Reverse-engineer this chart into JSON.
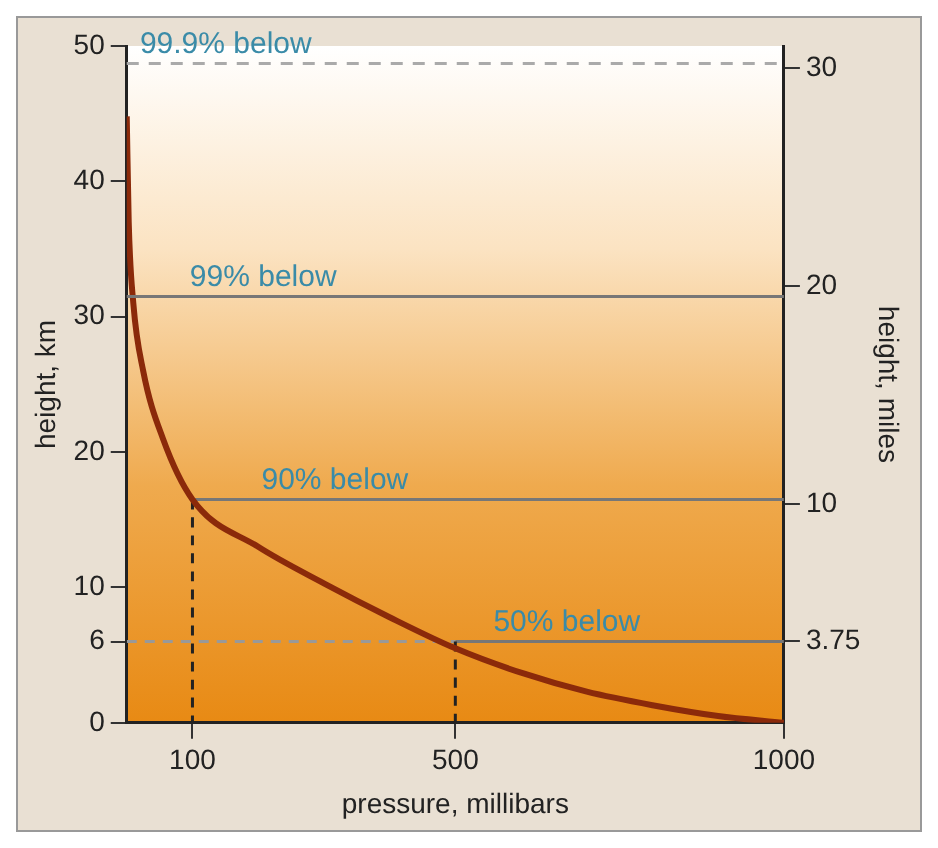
{
  "chart_data": {
    "type": "line",
    "xlabel": "pressure, millibars",
    "ylabel": "height, km",
    "y2label": "height, miles",
    "series": [
      {
        "color": "#8b2a0a",
        "x": [
          0,
          3,
          10,
          25,
          55,
          100,
          200,
          300,
          400,
          500,
          600,
          700,
          800,
          900,
          1000
        ],
        "values": [
          44.8,
          37,
          31,
          26,
          21,
          16.5,
          13,
          10.3,
          7.8,
          5.5,
          3.7,
          2.3,
          1.3,
          0.5,
          0
        ]
      },
      {
        "color": "#222222",
        "line_style": "dashed",
        "x": [
          100,
          100
        ],
        "values": [
          16.5,
          0
        ]
      },
      {
        "color": "#222222",
        "line_style": "dashed",
        "x": [
          500,
          500
        ],
        "values": [
          6,
          0
        ]
      },
      {
        "color": "#999999",
        "line_style": "dashed",
        "x": [
          0,
          500
        ],
        "values": [
          6,
          6
        ]
      },
      {
        "color": "#777777",
        "line_style": "solid",
        "x": [
          500,
          1000
        ],
        "values": [
          6,
          6
        ]
      },
      {
        "color": "#777777",
        "line_style": "solid",
        "x": [
          100,
          1000
        ],
        "values": [
          16.5,
          16.5
        ]
      }
    ],
    "ref_lines": [
      {
        "axis": "y",
        "value": 48.7,
        "color": "#aaaaaa",
        "line_style": "dashed"
      },
      {
        "axis": "y",
        "value": 31.5,
        "color": "#777777",
        "line_style": "solid"
      }
    ],
    "annotations": [
      {
        "text": "99.9% below",
        "x": 20,
        "y": 48.7
      },
      {
        "text": "99% below",
        "x": 96,
        "y": 31.5
      },
      {
        "text": "90% below",
        "x": 205,
        "y": 16.5
      },
      {
        "text": "50% below",
        "x": 558,
        "y": 6
      }
    ],
    "xlim": [
      0,
      1000
    ],
    "xticks": [
      100,
      500,
      1000
    ],
    "ylim": [
      0,
      50
    ],
    "yticks": [
      0,
      6,
      10,
      20,
      30,
      40,
      50
    ],
    "y2lim": [
      0,
      31
    ],
    "y2ticks": [
      3.75,
      10,
      20,
      30
    ],
    "grid": false,
    "legend": false,
    "marker": "none"
  }
}
